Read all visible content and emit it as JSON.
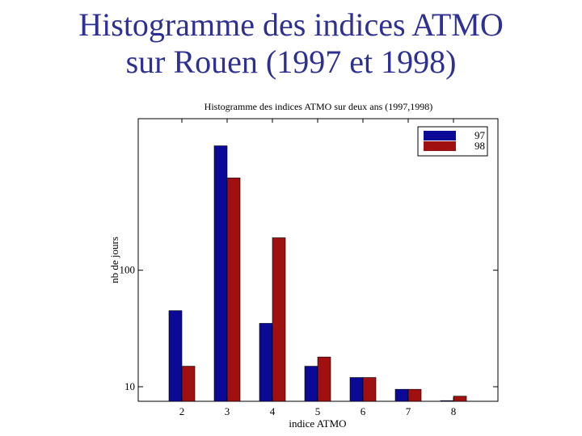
{
  "slide": {
    "title_line1": "Histogramme des indices ATMO",
    "title_line2": "sur Rouen (1997 et 1998)"
  },
  "chart_data": {
    "type": "bar",
    "title": "Histogramme des indices ATMO sur deux ans (1997,1998)",
    "xlabel": "indice ATMO",
    "ylabel": "nb de jours",
    "yscale": "log",
    "ylim": [
      7.5,
      2000
    ],
    "categories": [
      "2",
      "3",
      "4",
      "5",
      "6",
      "7",
      "8"
    ],
    "ytick_labels": [
      {
        "value": 10,
        "label": "10"
      },
      {
        "value": 100,
        "label": 100
      }
    ],
    "legend_position": "top-right",
    "grid": false,
    "series": [
      {
        "name": "97",
        "color": "#0a0a96",
        "values": [
          45,
          1170,
          35,
          15,
          12,
          9.5,
          7.6
        ]
      },
      {
        "name": "98",
        "color": "#a01010",
        "values": [
          15,
          620,
          190,
          18,
          12,
          9.5,
          8.3
        ]
      }
    ]
  }
}
